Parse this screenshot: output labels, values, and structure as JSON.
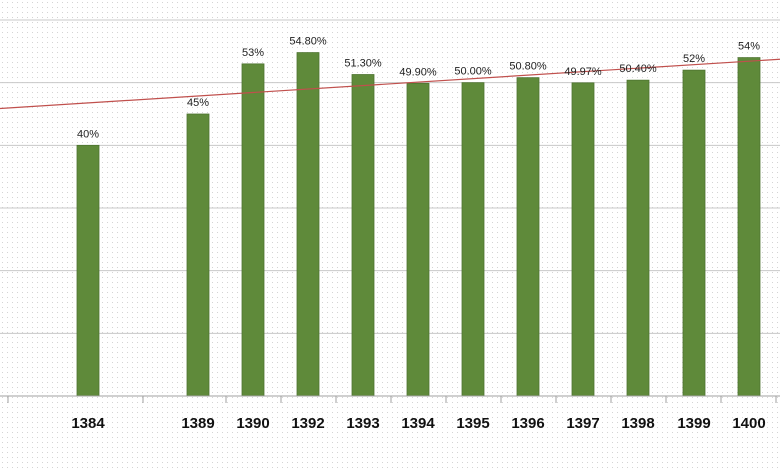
{
  "chart_data": {
    "type": "bar",
    "categories": [
      "1384",
      "1389",
      "1390",
      "1392",
      "1393",
      "1394",
      "1395",
      "1396",
      "1397",
      "1398",
      "1399",
      "1400"
    ],
    "values": [
      40,
      45,
      53,
      54.8,
      51.3,
      49.9,
      50.0,
      50.8,
      49.97,
      50.4,
      52,
      54
    ],
    "data_labels": [
      "40%",
      "45%",
      "53%",
      "54.80%",
      "51.30%",
      "49.90%",
      "50.00%",
      "50.80%",
      "49.97%",
      "50.40%",
      "52%",
      "54%"
    ],
    "title": "",
    "xlabel": "",
    "ylabel": "",
    "ylim": [
      0,
      60
    ],
    "grid": true,
    "legend": "none",
    "trendline": {
      "type": "linear",
      "color": "#c0504d"
    },
    "colors": {
      "bar": "#5f8a3a",
      "bar_edge": "#4e7430",
      "trendline": "#c0504d",
      "grid": "#c8c8c8"
    }
  }
}
